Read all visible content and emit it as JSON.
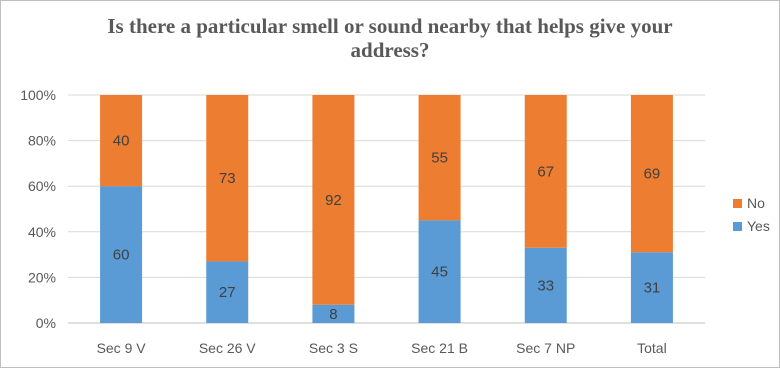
{
  "chart_data": {
    "type": "bar",
    "stacked": true,
    "percent": true,
    "title": "Is there a particular smell or sound nearby that helps give your address?",
    "categories": [
      "Sec 9 V",
      "Sec 26 V",
      "Sec 3 S",
      "Sec 21 B",
      "Sec 7 NP",
      "Total"
    ],
    "series": [
      {
        "name": "Yes",
        "color": "#5b9bd5",
        "values": [
          60,
          27,
          8,
          45,
          33,
          31
        ]
      },
      {
        "name": "No",
        "color": "#ed7d31",
        "values": [
          40,
          73,
          92,
          55,
          67,
          69
        ]
      }
    ],
    "y_ticks": [
      "0%",
      "20%",
      "40%",
      "60%",
      "80%",
      "100%"
    ],
    "ylim": [
      0,
      100
    ],
    "grid": true,
    "legend": {
      "position": "right",
      "order": [
        "No",
        "Yes"
      ]
    },
    "xlabel": "",
    "ylabel": ""
  }
}
